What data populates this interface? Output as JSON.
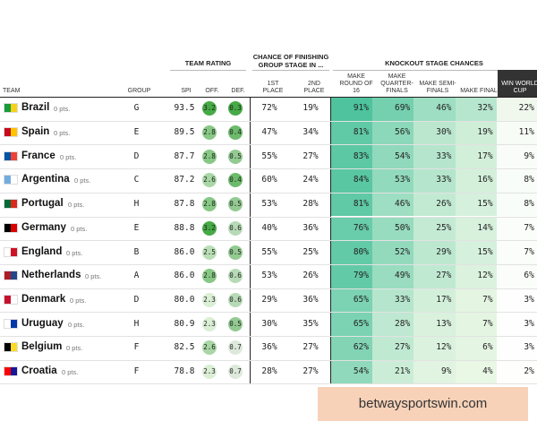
{
  "header": {
    "groups": [
      "TEAM RATING",
      "CHANCE OF FINISHING GROUP STAGE IN ...",
      "KNOCKOUT STAGE CHANCES"
    ],
    "columns": [
      "TEAM",
      "GROUP",
      "SPI",
      "OFF.",
      "DEF.",
      "1ST PLACE",
      "2ND PLACE",
      "MAKE ROUND OF 16",
      "MAKE QUARTER-FINALS",
      "MAKE SEMI-FINALS",
      "MAKE FINAL",
      "WIN WORLD CUP"
    ]
  },
  "table": {
    "rows": [
      {
        "team": "Brazil",
        "pts": "0 pts.",
        "group": "G",
        "spi": "93.5",
        "off": "3.2",
        "def": "0.3",
        "first": "72%",
        "second": "19%",
        "r16": "91%",
        "qf": "69%",
        "sf": "46%",
        "final": "32%",
        "win": "22%"
      },
      {
        "team": "Spain",
        "pts": "0 pts.",
        "group": "E",
        "spi": "89.5",
        "off": "2.8",
        "def": "0.4",
        "first": "47%",
        "second": "34%",
        "r16": "81%",
        "qf": "56%",
        "sf": "30%",
        "final": "19%",
        "win": "11%"
      },
      {
        "team": "France",
        "pts": "0 pts.",
        "group": "D",
        "spi": "87.7",
        "off": "2.8",
        "def": "0.5",
        "first": "55%",
        "second": "27%",
        "r16": "83%",
        "qf": "54%",
        "sf": "33%",
        "final": "17%",
        "win": "9%"
      },
      {
        "team": "Argentina",
        "pts": "0 pts.",
        "group": "C",
        "spi": "87.2",
        "off": "2.6",
        "def": "0.4",
        "first": "60%",
        "second": "24%",
        "r16": "84%",
        "qf": "53%",
        "sf": "33%",
        "final": "16%",
        "win": "8%"
      },
      {
        "team": "Portugal",
        "pts": "0 pts.",
        "group": "H",
        "spi": "87.8",
        "off": "2.8",
        "def": "0.5",
        "first": "53%",
        "second": "28%",
        "r16": "81%",
        "qf": "46%",
        "sf": "26%",
        "final": "15%",
        "win": "8%"
      },
      {
        "team": "Germany",
        "pts": "0 pts.",
        "group": "E",
        "spi": "88.8",
        "off": "3.2",
        "def": "0.6",
        "first": "40%",
        "second": "36%",
        "r16": "76%",
        "qf": "50%",
        "sf": "25%",
        "final": "14%",
        "win": "7%"
      },
      {
        "team": "England",
        "pts": "0 pts.",
        "group": "B",
        "spi": "86.0",
        "off": "2.5",
        "def": "0.5",
        "first": "55%",
        "second": "25%",
        "r16": "80%",
        "qf": "52%",
        "sf": "29%",
        "final": "15%",
        "win": "7%"
      },
      {
        "team": "Netherlands",
        "pts": "0 pts.",
        "group": "A",
        "spi": "86.0",
        "off": "2.8",
        "def": "0.6",
        "first": "53%",
        "second": "26%",
        "r16": "79%",
        "qf": "49%",
        "sf": "27%",
        "final": "12%",
        "win": "6%"
      },
      {
        "team": "Denmark",
        "pts": "0 pts.",
        "group": "D",
        "spi": "80.0",
        "off": "2.3",
        "def": "0.6",
        "first": "29%",
        "second": "36%",
        "r16": "65%",
        "qf": "33%",
        "sf": "17%",
        "final": "7%",
        "win": "3%"
      },
      {
        "team": "Uruguay",
        "pts": "0 pts.",
        "group": "H",
        "spi": "80.9",
        "off": "2.3",
        "def": "0.5",
        "first": "30%",
        "second": "35%",
        "r16": "65%",
        "qf": "28%",
        "sf": "13%",
        "final": "7%",
        "win": "3%"
      },
      {
        "team": "Belgium",
        "pts": "0 pts.",
        "group": "F",
        "spi": "82.5",
        "off": "2.6",
        "def": "0.7",
        "first": "36%",
        "second": "27%",
        "r16": "62%",
        "qf": "27%",
        "sf": "12%",
        "final": "6%",
        "win": "3%"
      },
      {
        "team": "Croatia",
        "pts": "0 pts.",
        "group": "F",
        "spi": "78.8",
        "off": "2.3",
        "def": "0.7",
        "first": "28%",
        "second": "27%",
        "r16": "54%",
        "qf": "21%",
        "sf": "9%",
        "final": "4%",
        "win": "2%"
      }
    ]
  },
  "watermark": "betwaysportswin.com"
}
